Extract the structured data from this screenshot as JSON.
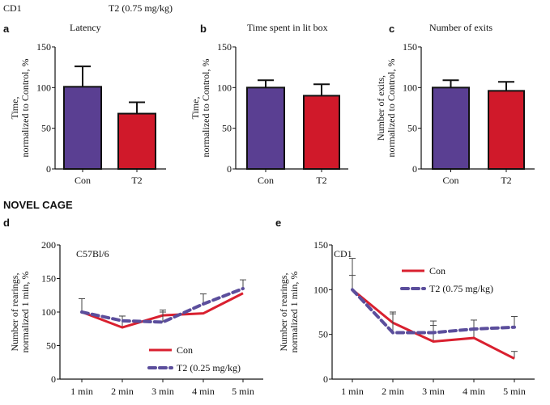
{
  "header": {
    "strain": "CD1",
    "treatment": "T2 (0.75 mg/kg)"
  },
  "section_title": "NOVEL CAGE",
  "colors": {
    "con": "#5a3f92",
    "t2": "#d0192a",
    "line_con": "#d9202f",
    "line_t2": "#5b4e9c"
  },
  "chart_data": [
    {
      "panel": "a",
      "type": "bar",
      "title": "Latency",
      "ylabel": "Time,\nnormalized to Control, %",
      "categories": [
        "Con",
        "T2"
      ],
      "values": [
        101,
        68
      ],
      "errors_upper": [
        126,
        82
      ],
      "ylim": [
        0,
        150
      ],
      "yticks": [
        0,
        50,
        100,
        150
      ]
    },
    {
      "panel": "b",
      "type": "bar",
      "title": "Time spent in lit box",
      "ylabel": "Time,\nnormalized to Control, %",
      "categories": [
        "Con",
        "T2"
      ],
      "values": [
        100,
        90
      ],
      "errors_upper": [
        109,
        104
      ],
      "ylim": [
        0,
        150
      ],
      "yticks": [
        0,
        50,
        100,
        150
      ]
    },
    {
      "panel": "c",
      "type": "bar",
      "title": "Number of exits",
      "ylabel": "Number of exits,\nnormalized to Control, %",
      "categories": [
        "Con",
        "T2"
      ],
      "values": [
        100,
        96
      ],
      "errors_upper": [
        109,
        107
      ],
      "ylim": [
        0,
        150
      ],
      "yticks": [
        0,
        50,
        100,
        150
      ]
    },
    {
      "panel": "d",
      "type": "line",
      "annotation": "C57Bl/6",
      "ylabel": "Number of rearings,\nnormalized 1 min, %",
      "categories": [
        "1 min",
        "2 min",
        "3 min",
        "4 min",
        "5 min"
      ],
      "series": [
        {
          "name": "Con",
          "values": [
            100,
            77,
            95,
            98,
            128
          ],
          "errors_upper": [
            100,
            94,
            100,
            98,
            128
          ]
        },
        {
          "name": "T2 (0.25 mg/kg)",
          "values": [
            100,
            87,
            85,
            112,
            135
          ],
          "errors_upper": [
            120,
            94,
            103,
            127,
            148
          ]
        }
      ],
      "ylim": [
        0,
        200
      ],
      "yticks": [
        0,
        50,
        100,
        150,
        200
      ],
      "legend": "bottom-right"
    },
    {
      "panel": "e",
      "type": "line",
      "annotation": "CD1",
      "ylabel": "Number of rearings,\nnormalized 1 min, %",
      "categories": [
        "1 min",
        "2 min",
        "3 min",
        "4 min",
        "5 min"
      ],
      "series": [
        {
          "name": "Con",
          "values": [
            100,
            63,
            42,
            46,
            23
          ],
          "errors_upper": [
            135,
            75,
            65,
            66,
            31
          ]
        },
        {
          "name": "T2 (0.75 mg/kg)",
          "values": [
            100,
            52,
            52,
            56,
            58
          ],
          "errors_upper": [
            116,
            73,
            60,
            56,
            70
          ]
        }
      ],
      "ylim": [
        0,
        150
      ],
      "yticks": [
        0,
        50,
        100,
        150
      ],
      "legend": "top-center"
    }
  ]
}
